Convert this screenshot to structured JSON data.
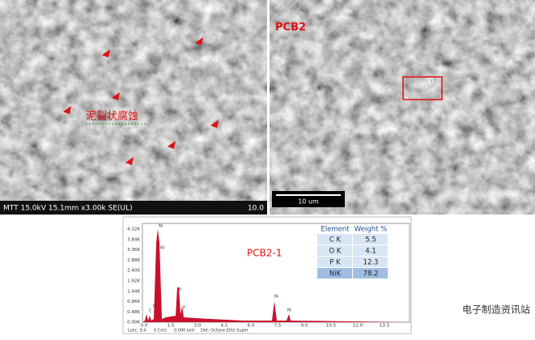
{
  "sem_left": {
    "info_bar": "MTT 15.0kV 15.1mm x3.00k SE(UL)",
    "scale_label": "10.0",
    "annotation": "泥裂状腐蚀"
  },
  "sem_right": {
    "label": "PCB2",
    "spot_label": "0",
    "scale_bar": "10 um"
  },
  "eds": {
    "title": "PCB2-1",
    "y_axis_labels": [
      "4.32K",
      "3.84K",
      "3.36K",
      "2.88K",
      "2.40K",
      "1.92K",
      "1.44K",
      "0.96K",
      "0.48K",
      "0.00K"
    ],
    "x_axis_labels": [
      "0.0",
      "1.5",
      "3.0",
      "4.5",
      "6.0",
      "7.5",
      "9.0",
      "10.5",
      "12.0",
      "13.5"
    ],
    "peak_labels": [
      "Ni",
      "Ni",
      "O",
      "C",
      "P",
      "P",
      "Ni",
      "Ni"
    ],
    "status_bar": [
      "Lsec: 9.4",
      "0 Cnts",
      "0.000 keV",
      "Det: Octane Elite Super"
    ],
    "table": {
      "header": [
        "Element",
        "Weight %"
      ],
      "rows": [
        [
          "C K",
          "5.5"
        ],
        [
          "O K",
          "4.1"
        ],
        [
          "P K",
          "12.3"
        ],
        [
          "NiK",
          "78.2"
        ]
      ]
    }
  },
  "watermark": "电子制造资讯站"
}
